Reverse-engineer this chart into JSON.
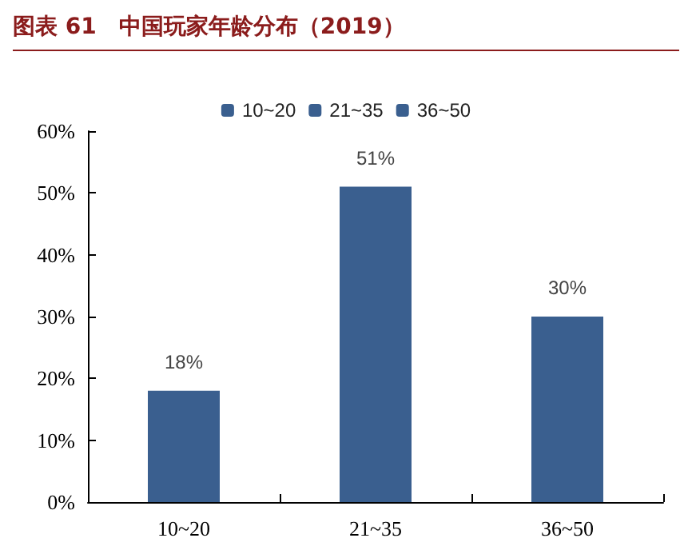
{
  "chart_data": {
    "type": "bar",
    "title": "图表 61　中国玩家年龄分布（2019）",
    "categories": [
      "10~20",
      "21~35",
      "36~50"
    ],
    "series": [
      {
        "name": "10~20",
        "color": "#3a5f8f",
        "values": [
          18,
          null,
          null
        ],
        "value_labels": [
          "18%",
          null,
          null
        ]
      },
      {
        "name": "21~35",
        "color": "#3a5f8f",
        "values": [
          null,
          51,
          null
        ],
        "value_labels": [
          null,
          "51%",
          null
        ]
      },
      {
        "name": "36~50",
        "color": "#3a5f8f",
        "values": [
          null,
          null,
          30
        ],
        "value_labels": [
          null,
          null,
          "30%"
        ]
      }
    ],
    "ylim": [
      0,
      60
    ],
    "yticks": [
      {
        "value": 0,
        "label": "0%"
      },
      {
        "value": 10,
        "label": "10%"
      },
      {
        "value": 20,
        "label": "20%"
      },
      {
        "value": 30,
        "label": "30%"
      },
      {
        "value": 40,
        "label": "40%"
      },
      {
        "value": 50,
        "label": "50%"
      },
      {
        "value": 60,
        "label": "60%"
      }
    ],
    "grid": false,
    "legend": "top"
  }
}
